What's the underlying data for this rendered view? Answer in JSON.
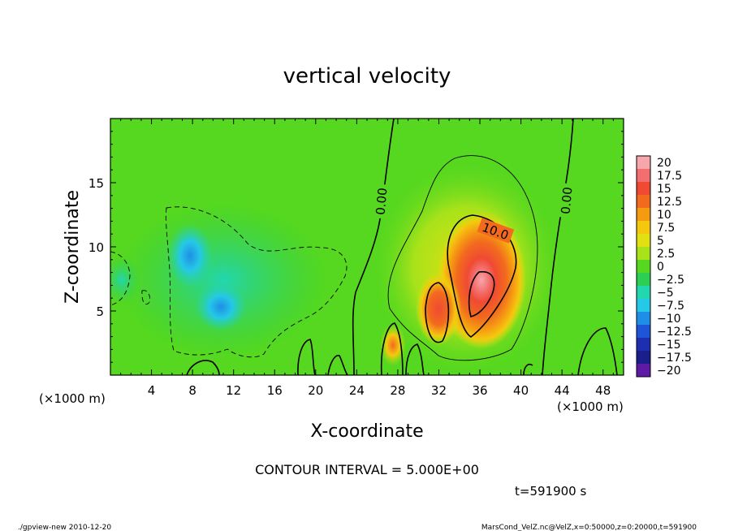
{
  "chart_data": {
    "type": "heatmap",
    "title": "vertical velocity",
    "xlabel": "X-coordinate",
    "ylabel": "Z-coordinate",
    "x_unit_left": "(×1000 m)",
    "x_unit_right": "(×1000 m)",
    "xlim": [
      0,
      50
    ],
    "ylim": [
      0,
      20
    ],
    "x_ticks": [
      4,
      8,
      12,
      16,
      20,
      24,
      28,
      32,
      36,
      40,
      44,
      48
    ],
    "x_tick_labels": [
      "4",
      "8",
      "12",
      "16",
      "20",
      "24",
      "28",
      "32",
      "36",
      "40",
      "44",
      "48"
    ],
    "y_ticks": [
      5,
      10,
      15
    ],
    "y_tick_labels": [
      "5",
      "10",
      "15"
    ],
    "colorbar": {
      "levels": [
        20,
        17.5,
        15,
        12.5,
        10,
        7.5,
        5,
        2.5,
        0,
        -2.5,
        -5,
        -7.5,
        -10,
        -12.5,
        -15,
        -17.5,
        -20
      ],
      "labels": [
        "20",
        "17.5",
        "15",
        "12.5",
        "10",
        "7.5",
        "5",
        "2.5",
        "0",
        "−2.5",
        "−5",
        "−7.5",
        "−10",
        "−12.5",
        "−15",
        "−17.5",
        "−20"
      ],
      "colors": [
        "#f7a6ac",
        "#f36e6e",
        "#f04a33",
        "#f26a1e",
        "#f59b12",
        "#f5c80f",
        "#e0e012",
        "#a8e21a",
        "#55d81f",
        "#2ccf54",
        "#22d6b0",
        "#25c8e6",
        "#1f8ee6",
        "#1e55d8",
        "#1d2fb0",
        "#1a1e8a",
        "#5d1aa5"
      ]
    },
    "field": {
      "background": 0,
      "features": [
        {
          "kind": "updraft",
          "x": 36,
          "z": 7,
          "peak": 19
        },
        {
          "kind": "updraft",
          "x": 31.5,
          "z": 5.5,
          "peak": 12
        },
        {
          "kind": "updraft",
          "x": 27.5,
          "z": 2.2,
          "peak": 9
        },
        {
          "kind": "downdraft",
          "x": 8,
          "z": 9.5,
          "peak": -9
        },
        {
          "kind": "downdraft",
          "x": 11,
          "z": 5,
          "peak": -8
        }
      ]
    },
    "contour_labels": [
      "0.00",
      "10.0",
      "0.00"
    ],
    "contour_interval_text": "CONTOUR INTERVAL = 5.000E+00",
    "time_text": "t=591900 s",
    "footer_left": "./gpview-new   2010-12-20",
    "footer_right": "MarsCond_VelZ.nc@VelZ,x=0:50000,z=0:20000,t=591900"
  }
}
